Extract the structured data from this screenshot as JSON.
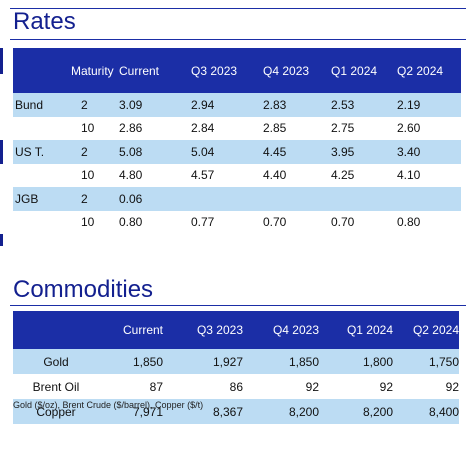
{
  "rates": {
    "title": "Rates",
    "header": [
      "",
      "Maturity",
      "Current",
      "Q3 2023",
      "Q4 2023",
      "Q1 2024",
      "Q2 2024"
    ],
    "rows": [
      [
        "Bund",
        "2",
        "3.09",
        "2.94",
        "2.83",
        "2.53",
        "2.19"
      ],
      [
        "",
        "10",
        "2.86",
        "2.84",
        "2.85",
        "2.75",
        "2.60"
      ],
      [
        "US T.",
        "2",
        "5.08",
        "5.04",
        "4.45",
        "3.95",
        "3.40"
      ],
      [
        "",
        "10",
        "4.80",
        "4.57",
        "4.40",
        "4.25",
        "4.10"
      ],
      [
        "JGB",
        "2",
        "0.06",
        "",
        "",
        "",
        ""
      ],
      [
        "",
        "10",
        "0.80",
        "0.77",
        "0.70",
        "0.70",
        "0.80"
      ]
    ]
  },
  "commodities": {
    "title": "Commodities",
    "header": [
      "",
      "Current",
      "Q3 2023",
      "Q4 2023",
      "Q1 2024",
      "Q2 2024"
    ],
    "rows": [
      [
        "Gold",
        "1,850",
        "1,927",
        "1,850",
        "1,800",
        "1,750"
      ],
      [
        "Brent Oil",
        "87",
        "86",
        "92",
        "92",
        "92"
      ],
      [
        "Copper",
        "7,971",
        "8,367",
        "8,200",
        "8,200",
        "8,400"
      ]
    ],
    "footnote": "Gold ($/oz), Brent Crude ($/barrel), Copper ($/t)"
  },
  "colors": {
    "header_bg": "#1b2ea6",
    "title": "#13208f",
    "row_shade": "#bcdcf3"
  }
}
